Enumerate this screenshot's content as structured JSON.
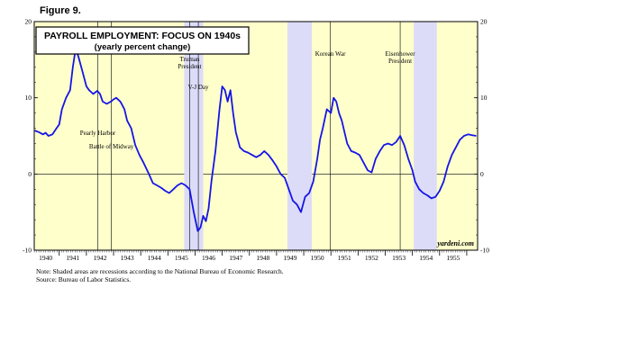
{
  "figure_label": "Figure 9.",
  "notes": {
    "line1": "Note: Shaded areas are recessions according to the National Bureau of Economic Research.",
    "line2": "Source: Bureau of Labor Statistics."
  },
  "chart_data": {
    "type": "line",
    "title": "PAYROLL EMPLOYMENT: FOCUS ON 1940s",
    "subtitle": "(yearly percent change)",
    "watermark": "yardeni.com",
    "xlim": [
      1939.58,
      1955.9
    ],
    "ylim": [
      -10,
      20
    ],
    "yticks": [
      -10,
      0,
      10,
      20
    ],
    "xticks": [
      "1940",
      "1941",
      "1942",
      "1943",
      "1944",
      "1945",
      "1946",
      "1947",
      "1948",
      "1949",
      "1950",
      "1951",
      "1952",
      "1953",
      "1954",
      "1955"
    ],
    "grid": false,
    "background_color": "#ffffcc",
    "recession_color": "#dcdcf8",
    "line_color": "#1515e6",
    "recessions": [
      [
        1945.1,
        1945.8
      ],
      [
        1948.9,
        1949.8
      ],
      [
        1953.55,
        1954.4
      ]
    ],
    "events": [
      {
        "label": "Pearly Harbor",
        "x": 1941.92
      },
      {
        "label": "Battle of Midway",
        "x": 1942.42
      },
      {
        "label": "Truman\nPresident",
        "x": 1945.3
      },
      {
        "label": "V-J Day",
        "x": 1945.62
      },
      {
        "label": "Korean War",
        "x": 1950.48
      },
      {
        "label": "Eisenhower\nPresident",
        "x": 1953.05
      }
    ],
    "series": [
      {
        "x": [
          1939.6,
          1939.75,
          1939.9,
          1940.0,
          1940.1,
          1940.25,
          1940.4,
          1940.5,
          1940.6,
          1940.75,
          1940.9,
          1941.0,
          1941.1,
          1941.2,
          1941.35,
          1941.5,
          1941.6,
          1941.75,
          1941.9,
          1942.0,
          1942.1,
          1942.25,
          1942.4,
          1942.5,
          1942.6,
          1942.75,
          1942.9,
          1943.0,
          1943.15,
          1943.3,
          1943.45,
          1943.6,
          1943.8,
          1943.95,
          1944.1,
          1944.25,
          1944.4,
          1944.55,
          1944.7,
          1944.85,
          1945.0,
          1945.15,
          1945.3,
          1945.45,
          1945.6,
          1945.7,
          1945.8,
          1945.9,
          1946.0,
          1946.1,
          1946.25,
          1946.4,
          1946.5,
          1946.6,
          1946.7,
          1946.8,
          1946.9,
          1947.0,
          1947.15,
          1947.3,
          1947.45,
          1947.6,
          1947.75,
          1947.9,
          1948.05,
          1948.2,
          1948.35,
          1948.5,
          1948.65,
          1948.8,
          1948.95,
          1949.1,
          1949.25,
          1949.4,
          1949.55,
          1949.7,
          1949.85,
          1950.0,
          1950.1,
          1950.2,
          1950.35,
          1950.5,
          1950.6,
          1950.7,
          1950.8,
          1950.9,
          1951.0,
          1951.1,
          1951.25,
          1951.4,
          1951.55,
          1951.7,
          1951.85,
          1952.0,
          1952.15,
          1952.3,
          1952.45,
          1952.6,
          1952.75,
          1952.9,
          1953.05,
          1953.2,
          1953.35,
          1953.5,
          1953.6,
          1953.75,
          1953.9,
          1954.05,
          1954.2,
          1954.35,
          1954.5,
          1954.65,
          1954.8,
          1954.95,
          1955.1,
          1955.25,
          1955.4,
          1955.55,
          1955.7,
          1955.85
        ],
        "values": [
          5.7,
          5.5,
          5.2,
          5.4,
          5.0,
          5.2,
          6.0,
          6.5,
          8.5,
          10.0,
          11.0,
          14.0,
          16.3,
          15.5,
          13.5,
          11.5,
          11.0,
          10.5,
          10.9,
          10.5,
          9.5,
          9.2,
          9.5,
          9.8,
          10.0,
          9.5,
          8.5,
          7.0,
          6.0,
          3.8,
          2.5,
          1.5,
          0.0,
          -1.2,
          -1.5,
          -1.8,
          -2.2,
          -2.5,
          -2.0,
          -1.5,
          -1.2,
          -1.5,
          -2.0,
          -5.0,
          -7.5,
          -7.0,
          -5.5,
          -6.2,
          -4.5,
          -1.0,
          3.0,
          8.5,
          11.5,
          11.0,
          9.5,
          11.0,
          8.0,
          5.5,
          3.5,
          3.0,
          2.8,
          2.5,
          2.2,
          2.5,
          3.0,
          2.5,
          1.8,
          1.0,
          0.0,
          -0.5,
          -2.0,
          -3.5,
          -4.0,
          -5.0,
          -3.0,
          -2.5,
          -1.0,
          2.0,
          4.5,
          6.0,
          8.5,
          8.0,
          10.0,
          9.5,
          8.0,
          7.0,
          5.5,
          4.0,
          3.0,
          2.8,
          2.5,
          1.5,
          0.5,
          0.2,
          2.0,
          3.0,
          3.8,
          4.0,
          3.8,
          4.2,
          5.0,
          3.8,
          2.0,
          0.5,
          -1.0,
          -2.0,
          -2.5,
          -2.8,
          -3.2,
          -3.0,
          -2.2,
          -1.0,
          1.0,
          2.5,
          3.5,
          4.5,
          5.0,
          5.2,
          5.1,
          5.0
        ]
      }
    ]
  }
}
